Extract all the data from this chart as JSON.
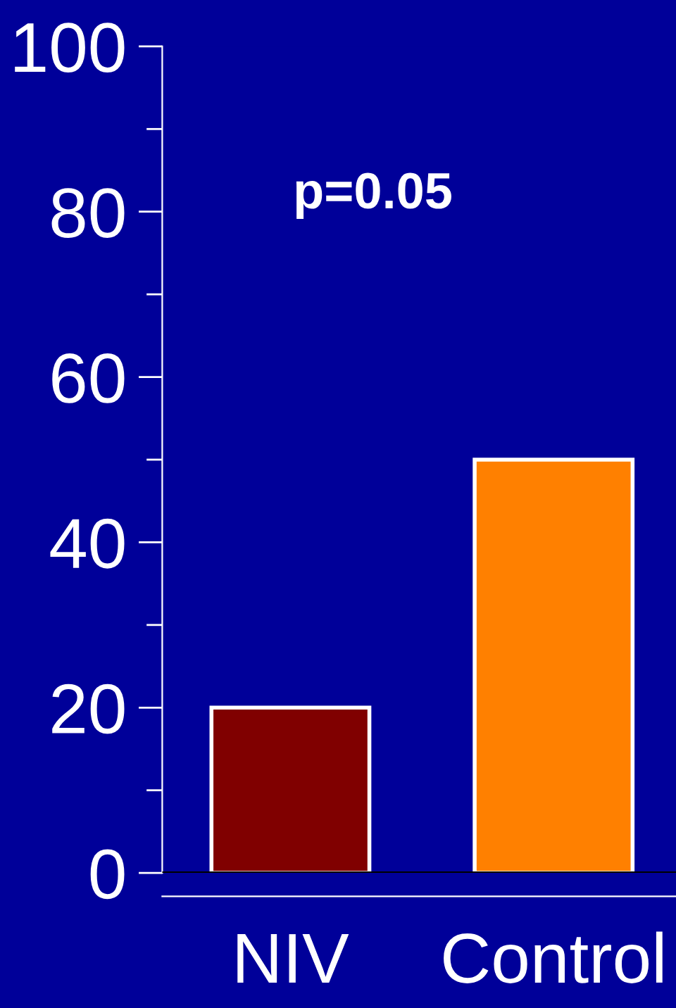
{
  "chart_data": {
    "type": "bar",
    "categories": [
      "NIV",
      "Control"
    ],
    "values": [
      20,
      50
    ],
    "colors": [
      "#800000",
      "#ff8000"
    ],
    "ylim": [
      0,
      100
    ],
    "yticks": [
      0,
      {
        "value": 10,
        "label": null
      },
      20,
      {
        "value": 30,
        "label": null
      },
      40,
      {
        "value": 50,
        "label": null
      },
      60,
      {
        "value": 70,
        "label": null
      },
      80,
      {
        "value": 90,
        "label": null
      },
      100
    ],
    "ref_lines": [
      {
        "axis": "y",
        "value": 0,
        "color": "#000000"
      }
    ],
    "annotations": [
      "p=0.05"
    ],
    "grid": false,
    "legend": false
  }
}
